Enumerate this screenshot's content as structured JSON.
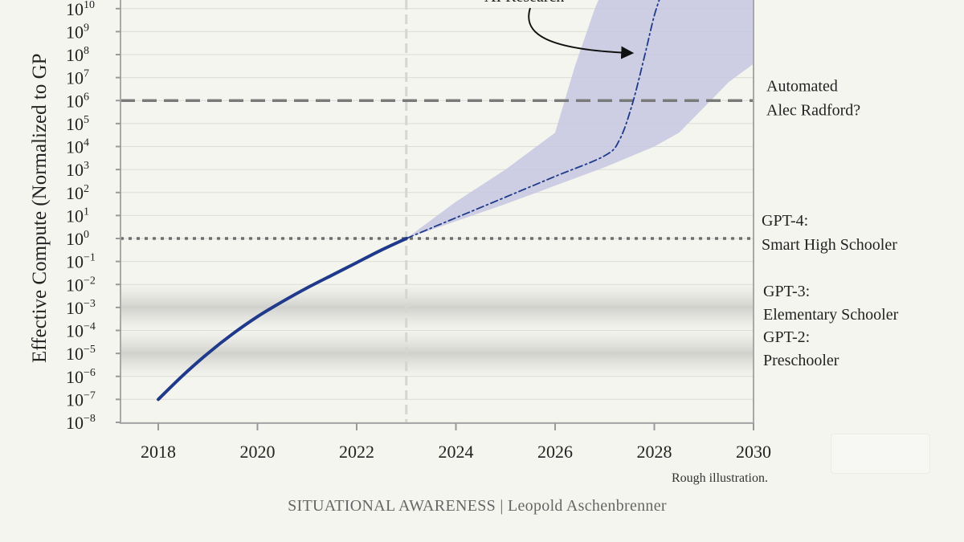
{
  "chart_data": {
    "type": "line",
    "title": "",
    "xlabel": "",
    "ylabel": "Effective Compute (Normalized to GP",
    "xlim": [
      2017.25,
      2030
    ],
    "ylog10_range": [
      -8.2,
      10.4
    ],
    "x_ticks": [
      "2018",
      "2020",
      "2022",
      "2024",
      "2026",
      "2028",
      "2030"
    ],
    "y_ticks": [
      {
        "base": "10",
        "exp": "10"
      },
      {
        "base": "10",
        "exp": "9"
      },
      {
        "base": "10",
        "exp": "8"
      },
      {
        "base": "10",
        "exp": "7"
      },
      {
        "base": "10",
        "exp": "6"
      },
      {
        "base": "10",
        "exp": "5"
      },
      {
        "base": "10",
        "exp": "4"
      },
      {
        "base": "10",
        "exp": "3"
      },
      {
        "base": "10",
        "exp": "2"
      },
      {
        "base": "10",
        "exp": "1"
      },
      {
        "base": "10",
        "exp": "0"
      },
      {
        "base": "10",
        "exp": "−1"
      },
      {
        "base": "10",
        "exp": "−2"
      },
      {
        "base": "10",
        "exp": "−3"
      },
      {
        "base": "10",
        "exp": "−4"
      },
      {
        "base": "10",
        "exp": "−5"
      },
      {
        "base": "10",
        "exp": "−6"
      },
      {
        "base": "10",
        "exp": "−7"
      },
      {
        "base": "10",
        "exp": "−8"
      }
    ],
    "y_tick_values_log10": [
      10,
      9,
      8,
      7,
      6,
      5,
      4,
      3,
      2,
      1,
      0,
      -1,
      -2,
      -3,
      -4,
      -5,
      -6,
      -7,
      -8
    ],
    "grid": true,
    "series": [
      {
        "style": "solid",
        "color": "#1f3a8a",
        "x": [
          2018,
          2018.5,
          2019,
          2019.5,
          2020,
          2020.5,
          2021,
          2021.5,
          2022,
          2022.5,
          2023
        ],
        "log10_y": [
          -7.0,
          -5.95,
          -5.0,
          -4.15,
          -3.4,
          -2.75,
          -2.15,
          -1.6,
          -1.05,
          -0.5,
          0
        ]
      },
      {
        "style": "dash-dot",
        "color": "#1f3a8a",
        "x": [
          2023,
          2024,
          2025,
          2026,
          2027,
          2027.3,
          2027.55,
          2027.8,
          2028.0,
          2028.2
        ],
        "log10_y": [
          0,
          0.9,
          1.8,
          2.7,
          3.6,
          4.3,
          5.8,
          7.9,
          9.7,
          11.0
        ]
      }
    ],
    "band": {
      "color": "#c5c7e0",
      "x_upper": [
        2023,
        2024,
        2025,
        2026,
        2026.4,
        2026.8,
        2027.1
      ],
      "log10_upper": [
        0,
        1.6,
        3.0,
        4.6,
        7.5,
        10.0,
        11.5
      ],
      "x_lower": [
        2030,
        2029.5,
        2029,
        2028.5,
        2028,
        2027,
        2026,
        2025,
        2024,
        2023
      ],
      "log10_lower": [
        7.6,
        6.8,
        5.7,
        4.6,
        4.0,
        3.1,
        2.3,
        1.5,
        0.75,
        0
      ]
    },
    "reference_lines": [
      {
        "log10_y": 6,
        "style": "dashed",
        "color": "#7a7a7a",
        "label": [
          "Automated",
          "Alec Radford?"
        ]
      },
      {
        "log10_y": 0,
        "style": "dotted",
        "color": "#6e6e6e",
        "label": [
          "GPT-4:",
          "Smart High Schooler"
        ]
      }
    ],
    "level_bands": [
      {
        "log10_y": -3,
        "label": [
          "GPT-3:",
          "Elementary Schooler"
        ]
      },
      {
        "log10_y": -5,
        "label": [
          "GPT-2:",
          "Preschooler"
        ]
      }
    ],
    "vertical_marker_x": 2023,
    "annotation_text": "AI Research",
    "note": "Rough illustration.",
    "credit": "SITUATIONAL AWARENESS | Leopold Aschenbrenner"
  }
}
